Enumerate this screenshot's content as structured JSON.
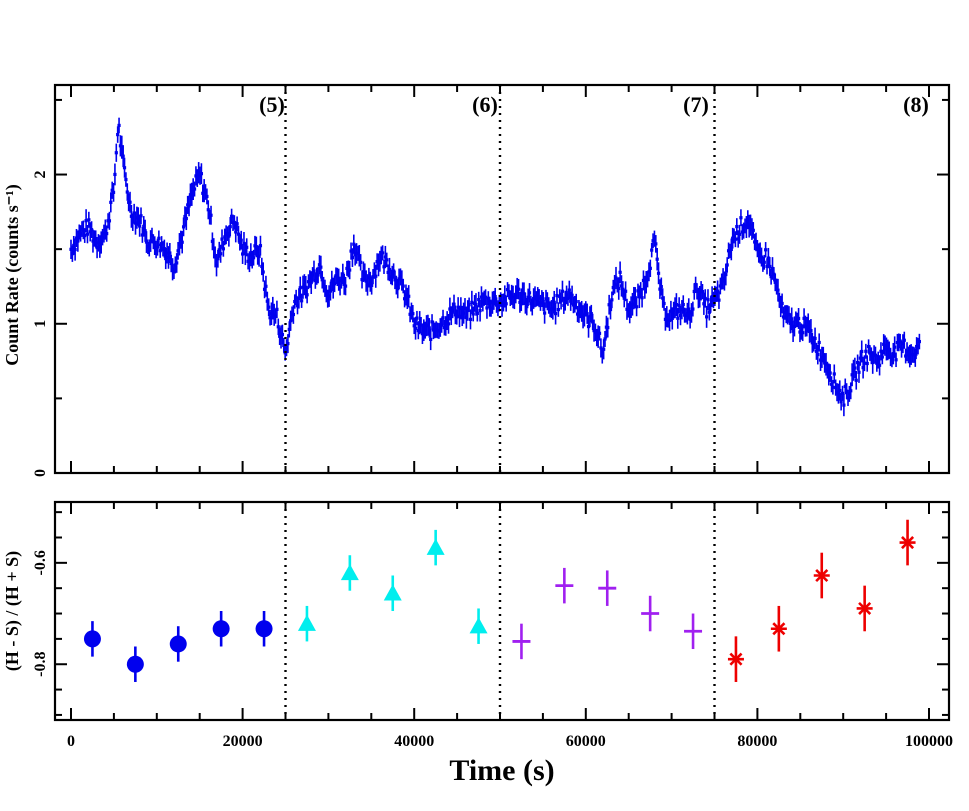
{
  "chart_data": [
    {
      "type": "scatter",
      "panel": "top",
      "ylabel": "Count Rate (counts s⁻¹)",
      "xlim": [
        0,
        100000
      ],
      "ylim": [
        0,
        2.6
      ],
      "ytick_labels": [
        "0",
        "1",
        "2"
      ],
      "ytick_values": [
        0,
        1,
        2
      ],
      "segment_boundaries": [
        25000,
        50000,
        75000
      ],
      "segment_labels": [
        "(5)",
        "(6)",
        "(7)",
        "(8)"
      ],
      "segment_label_x": [
        23300,
        48200,
        73000,
        98000
      ],
      "color": "#0000ee",
      "series": [
        {
          "name": "light curve",
          "anchors_x": [
            0,
            1000,
            2000,
            3000,
            4000,
            5000,
            5500,
            6000,
            7000,
            8000,
            9000,
            10000,
            11000,
            12000,
            13000,
            14000,
            15000,
            16000,
            17000,
            18000,
            19000,
            20000,
            21000,
            22000,
            23000,
            24000,
            25000,
            26000,
            27000,
            28000,
            29000,
            30000,
            31000,
            32000,
            33000,
            34000,
            35000,
            36000,
            37000,
            38000,
            39000,
            40000,
            41000,
            42000,
            43000,
            44000,
            45000,
            46000,
            47000,
            48000,
            50000,
            52000,
            54000,
            56000,
            58000,
            60000,
            61000,
            62000,
            63000,
            64000,
            65000,
            66000,
            67000,
            68000,
            69000,
            70000,
            71000,
            72000,
            73000,
            74000,
            75000,
            76000,
            77000,
            78000,
            79000,
            80000,
            81000,
            82000,
            83000,
            84000,
            85000,
            86000,
            87000,
            88000,
            89000,
            90000,
            91000,
            92000,
            93000,
            94000,
            95000,
            96000,
            97000,
            98000,
            99000
          ],
          "anchors_y": [
            1.5,
            1.6,
            1.65,
            1.55,
            1.6,
            1.9,
            2.35,
            2.1,
            1.75,
            1.7,
            1.55,
            1.55,
            1.5,
            1.4,
            1.6,
            1.85,
            2.0,
            1.8,
            1.4,
            1.6,
            1.7,
            1.5,
            1.45,
            1.5,
            1.1,
            1.05,
            0.8,
            1.15,
            1.2,
            1.3,
            1.4,
            1.2,
            1.3,
            1.3,
            1.55,
            1.3,
            1.3,
            1.45,
            1.4,
            1.3,
            1.2,
            1.0,
            0.95,
            0.95,
            1.0,
            1.05,
            1.1,
            1.05,
            1.1,
            1.15,
            1.15,
            1.2,
            1.15,
            1.1,
            1.2,
            1.05,
            1.0,
            0.8,
            1.2,
            1.3,
            1.1,
            1.15,
            1.3,
            1.55,
            1.1,
            1.05,
            1.1,
            1.05,
            1.25,
            1.1,
            1.15,
            1.25,
            1.55,
            1.65,
            1.7,
            1.45,
            1.45,
            1.3,
            1.05,
            1.0,
            1.0,
            0.95,
            0.85,
            0.75,
            0.6,
            0.5,
            0.6,
            0.75,
            0.8,
            0.75,
            0.85,
            0.8,
            0.85,
            0.8,
            0.85
          ],
          "point_spacing": 160,
          "error": 0.06
        }
      ]
    },
    {
      "type": "scatter",
      "panel": "bottom",
      "xlabel": "Time (s)",
      "ylabel": "(H - S) / (H + S)",
      "xlim": [
        0,
        100000
      ],
      "ylim": [
        -0.91,
        -0.48
      ],
      "xtick_labels": [
        "0",
        "20000",
        "40000",
        "60000",
        "80000",
        "100000"
      ],
      "xtick_values": [
        0,
        20000,
        40000,
        60000,
        80000,
        100000
      ],
      "ytick_labels": [
        "-0.8",
        "-0.6"
      ],
      "ytick_values": [
        -0.8,
        -0.6
      ],
      "segment_boundaries": [
        25000,
        50000,
        75000
      ],
      "series": [
        {
          "name": "segment 5",
          "marker": "circle",
          "color": "#0000ee",
          "x": [
            2500,
            7500,
            12500,
            17500,
            22500
          ],
          "y": [
            -0.75,
            -0.8,
            -0.76,
            -0.73,
            -0.73
          ],
          "yerr": 0.035
        },
        {
          "name": "segment 6",
          "marker": "triangle",
          "color": "#00eeee",
          "x": [
            27500,
            32500,
            37500,
            42500,
            47500
          ],
          "y": [
            -0.72,
            -0.62,
            -0.66,
            -0.57,
            -0.725
          ],
          "yerr": 0.035
        },
        {
          "name": "segment 7",
          "marker": "plus",
          "color": "#a020f0",
          "x": [
            52500,
            57500,
            62500,
            67500,
            72500
          ],
          "y": [
            -0.755,
            -0.645,
            -0.65,
            -0.7,
            -0.735
          ],
          "yerr": 0.035
        },
        {
          "name": "segment 8",
          "marker": "star",
          "color": "#ee0000",
          "x": [
            77500,
            82500,
            87500,
            92500,
            97500
          ],
          "y": [
            -0.79,
            -0.73,
            -0.625,
            -0.69,
            -0.56
          ],
          "yerr": 0.045
        }
      ]
    }
  ]
}
